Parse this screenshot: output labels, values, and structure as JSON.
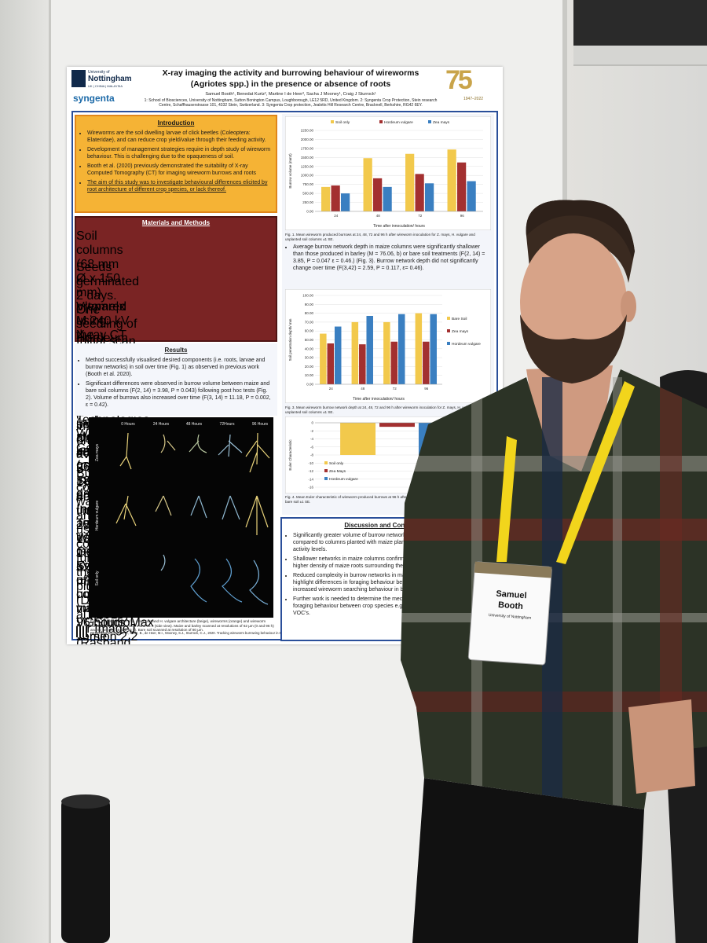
{
  "header": {
    "university": "University of",
    "university_name": "Nottingham",
    "campuses": "UK | CHINA | MALAYSIA",
    "sponsor": "syngenta",
    "title": "X-ray imaging the activity and burrowing behaviour of wireworms (Agriotes spp.) in the presence or absence of roots",
    "authors": "Samuel Booth¹, Benedat Kurtz², Martine I de Heer³, Sacha J Mooney¹, Craig J Sturrock¹",
    "affiliations": "1: School of Biosciences, University of Nottingham, Sutton Bonington Campus, Loughborough, LE12 5RD, United Kingdom. 2: Syngenta Crop Protection, Stein research Centre, Schaffhauserstrasse 101, 4332 Stein, Switzerland. 3: Syngenta Crop protection, Jealotts Hill Research Centre, Bracknell, Berkshire, RG42 6EY.",
    "anniversary": "75",
    "anniversary_years": "1947–2022"
  },
  "introduction": {
    "heading": "Introduction",
    "bullets": [
      "Wireworms are the soil dwelling larvae of click beetles (Coleoptera: Elateridae), and can reduce crop yield/value through their feeding activity.",
      "Development of management strategies require in depth study of wireworm behaviour. This is challenging due to the opaqueness of soil.",
      "Booth et al. (2020) previously demonstrated the suitability of X-ray Computed Tomography (CT) for imaging wireworm burrows and roots"
    ],
    "aim": "The aim of this study was to investigate behavioural differences elicited by root architecture of different crop species, or lack thereof."
  },
  "methods": {
    "heading": "Materials and Methods",
    "steps": [
      "Soil columns (68 mm Ø x 150 mm) prepared using the method of Mašková et al. (2017)",
      "Seeds germinated 2 days. One seedling of Hordeum vulgare or Zea mays planted in each column (n=6) alongside bare soil (n=6). Incubated 5 days",
      "V|tome|x M 240 kV X-ray CT system (GE Sensing and Inspection Technologies, Wunstorf, Germany)",
      "Initial scan of root system architecture: 1800 projection images (image averaging 3 & skip 1), detector timing of 250 ms, 180 kV, 156 µA, 62 µm, 67 minutes.",
      "Two wireworms added, scanned after 24, 48, 72 and 96 hours. 1800 projection (no image averaging) used, 250 ms, 180 kV, 156 µA, 80 µm, 8 minutes. 96 hours same settings as 0 hour scan.",
      "Reconstructed using DatosREC software (GE Sensing and Inspection Technologies, Wunstorf, Germany). Segmentation of components via VGStudioMax version 2.2 (Volume Graphics GmbH, Heidelberg, Germany)) using methods of Helliwell et al (2017).",
      "Burrow complexity was analysed using the connectivity function of the Bone-J plugin (Doube et al., 2010) for ImageJ (Rasband, 2020). ANOVA analysis with post hoc Tukey (repeated measures: burrow volume and depth, regular= complexity) performed using Genstat statistical software (19th edition; VSN, Hemel Hempstead, UK)"
    ]
  },
  "results": {
    "heading": "Results",
    "bullets": [
      "Method successfully visualised desired components (i.e. roots, larvae and burrow networks) in soil over time (Fig. 1) as observed in previous work (Booth et al. 2020).",
      "Significant differences were observed in burrow volume between maize and bare soil columns (F(2, 14) = 3.98, P = 0.043) following post hoc tests (Fig. 2). Volume of burrows also increased over time (F(3, 14) = 11.18, P = 0.002, ε = 0.42)."
    ]
  },
  "image_panel": {
    "times": [
      "0 Hours",
      "24 Hours",
      "48 Hours",
      "72Hours",
      "96 Hours"
    ],
    "rows": [
      "Zea mays",
      "Hordeum vulgare",
      "Soil only"
    ],
    "caption": "Fig. 2. 3D visualisation of Z. mays root and H. vulgare architecture (beige), wireworms (orange) and wireworm burrows (blue) at 0, 24, 48, 72 and 96 h (side view). Maize and barley scanned at resolutions of 62 µm (0 and 96 h) and 80 µm (24, 48 and 96 h). Bare soil scanned at resolution of 80 µm."
  },
  "references": "REFERENCES: Booth, S., Kurtz, B., de Heer, M.I., Mooney, S.J., Sturrock, C.J., 2020. Tracking wireworm burrowing behaviour in soil over time using 3D X-ray computed tomography. Pest Manag. Sci. 76, 2653–2662.",
  "figures": [
    {
      "type": "bar",
      "legend": "top",
      "ylabel": "Burrow volume (mm3)",
      "xlabel": "Time after innoculation/ hours",
      "categories": [
        "24",
        "48",
        "72",
        "96"
      ],
      "series": [
        {
          "name": "Soil only",
          "color": "#f2c94c",
          "values": [
            680,
            1480,
            1600,
            1720
          ]
        },
        {
          "name": "Hordeum vulgare",
          "color": "#a33030",
          "values": [
            720,
            920,
            1040,
            1360
          ]
        },
        {
          "name": "Zea mays",
          "color": "#3a7fc1",
          "values": [
            500,
            680,
            780,
            840
          ]
        }
      ],
      "ylim": [
        0,
        2250
      ],
      "yticks": [
        {
          "value": 0,
          "label": "0.00"
        },
        {
          "value": 250,
          "label": "250.00"
        },
        {
          "value": 500,
          "label": "500.00"
        },
        {
          "value": 750,
          "label": "750.00"
        },
        {
          "value": 1000,
          "label": "1000.00"
        },
        {
          "value": 1250,
          "label": "1250.00"
        },
        {
          "value": 1500,
          "label": "1500.00"
        },
        {
          "value": 1750,
          "label": "1750.00"
        },
        {
          "value": 2000,
          "label": "2000.00"
        },
        {
          "value": 2250,
          "label": "2250.00"
        }
      ],
      "caption": "Fig. 1. Mean wireworm produced burrows at 24, 48, 72 and 96 h after wireworm inoculation for Z. mays, H. vulgare and unplanted soil columns ±1 SE."
    },
    {
      "type": "bar",
      "legend": "right",
      "ylabel": "Soil penetration depth/ mm",
      "xlabel": "Time after innoculation/ hours",
      "categories": [
        "24",
        "48",
        "72",
        "96"
      ],
      "series": [
        {
          "name": "Bare Soil",
          "color": "#f2c94c",
          "values": [
            57,
            70,
            70,
            80
          ]
        },
        {
          "name": "Zea mays",
          "color": "#a33030",
          "values": [
            46,
            45,
            48,
            48
          ]
        },
        {
          "name": "Hordeum vulgare",
          "color": "#3a7fc1",
          "values": [
            65,
            77,
            79,
            79
          ]
        }
      ],
      "ylim": [
        0,
        100
      ],
      "yticks": [
        {
          "value": 0,
          "label": "0.00"
        },
        {
          "value": 10,
          "label": "10.00"
        },
        {
          "value": 20,
          "label": "20.00"
        },
        {
          "value": 30,
          "label": "30.00"
        },
        {
          "value": 40,
          "label": "40.00"
        },
        {
          "value": 50,
          "label": "50.00"
        },
        {
          "value": 60,
          "label": "60.00"
        },
        {
          "value": 70,
          "label": "70.00"
        },
        {
          "value": 80,
          "label": "80.00"
        },
        {
          "value": 90,
          "label": "90.00"
        },
        {
          "value": 100,
          "label": "100.00"
        }
      ],
      "caption": "Fig. 3. Mean wireworm burrow network depth at 24, 48, 72 and 96 h after wireworm inoculation for Z. mays, H. vulgare and unplanted soil columns ±1 SE."
    },
    {
      "type": "bar",
      "legend": "bottom",
      "ylabel": "Euler Characteristic",
      "categories": [
        null
      ],
      "series": [
        {
          "name": "Soil only",
          "color": "#f2c94c",
          "values": [
            -8
          ]
        },
        {
          "name": "Zea Mays",
          "color": "#a33030",
          "values": [
            -1
          ]
        },
        {
          "name": "Hordeum vulgare",
          "color": "#3a7fc1",
          "values": [
            -8
          ]
        }
      ],
      "ylim": [
        -16,
        0
      ],
      "yticks": [
        0,
        -2,
        -4,
        -6,
        -8,
        -10,
        -12,
        -14,
        -16
      ],
      "caption": "Fig. 4. Mean Euler characteristic of wireworm produced burrows at 96 h after wireworm inoculation for Z. mays, H. vulgare and bare soil ±1 SE."
    }
  ],
  "depth_text": "Average burrow network depth in maize columns were significantly shallower than those produced in barley (M = 76.06, b) or bare soil treatments (F(2, 14) = 3.85, P = 0.047 ε = 0.46.) (Fig. 3). Burrow network depth did not significantly change over time (F(3,42) = 2.59, P = 0.117, ε= 0.46).",
  "discussion": {
    "heading": "Discussion and Conclusions",
    "bullets": [
      [
        "Significantly greater volume of burrow networks in",
        "compared to columns planted with maize plant ro",
        "activity levels."
      ],
      [
        "Shallower networks in maize columns confirm g",
        "higher density of maize roots surrounding the s"
      ],
      [
        "Reduced complexity in burrow networks in maiz",
        "highlight differences in foraging behaviour betwe",
        "increased wireworm searching behaviour in barle"
      ],
      [
        "Further work is needed to determine the mechan",
        "foraging behaviour between crop species e.g CO",
        "VOC's."
      ]
    ]
  },
  "badge": {
    "first_name": "Samuel",
    "last_name": "Booth",
    "organisation": "University of Nottingham"
  }
}
